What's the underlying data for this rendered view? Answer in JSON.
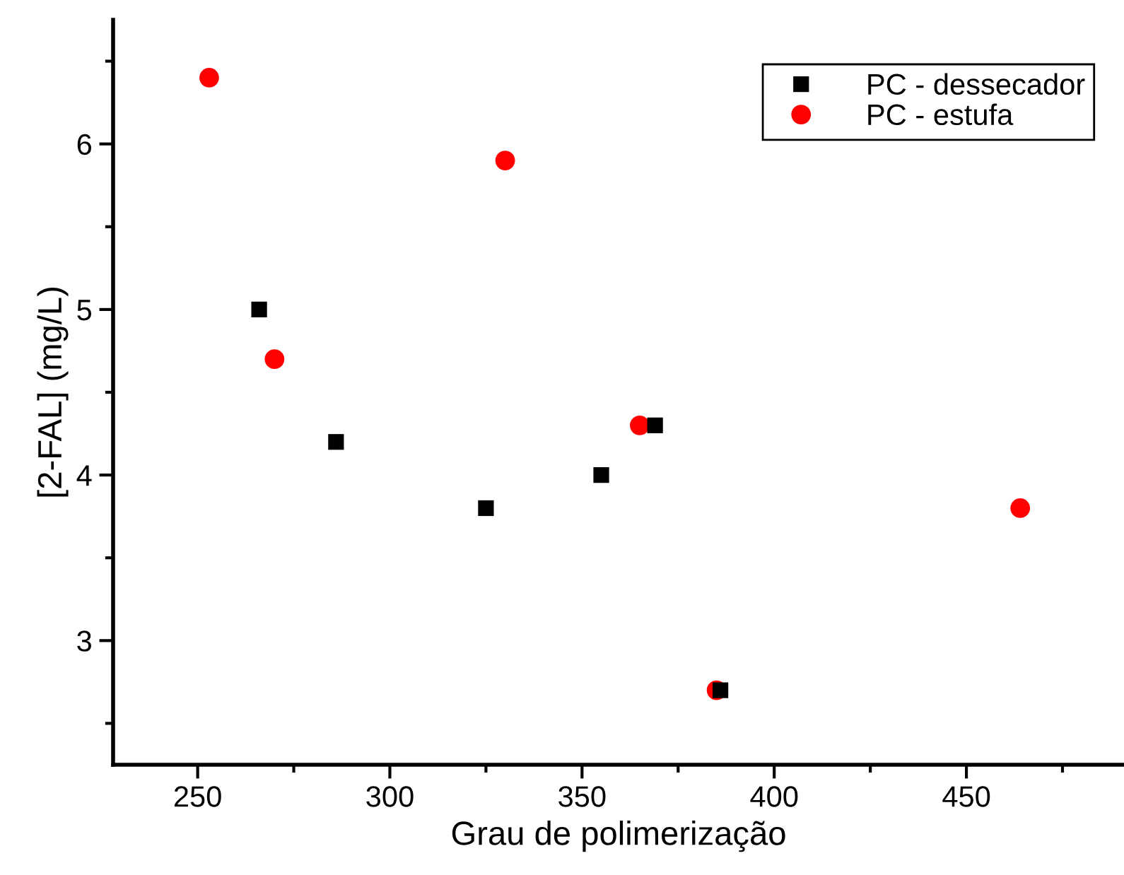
{
  "chart_data": {
    "type": "scatter",
    "xlabel": "Grau de polimerização",
    "ylabel": "[2-FAL] (mg/L)",
    "xlim": [
      228,
      491
    ],
    "ylim": [
      2.25,
      6.75
    ],
    "xticks": [
      250,
      {
        "value": 275,
        "label": null
      },
      300,
      {
        "value": 325,
        "label": null
      },
      350,
      {
        "value": 375,
        "label": null
      },
      400,
      {
        "value": 425,
        "label": null
      },
      450,
      {
        "value": 475,
        "label": null
      }
    ],
    "yticks": [
      {
        "value": 2.5,
        "label": null
      },
      3,
      {
        "value": 3.5,
        "label": null
      },
      4,
      {
        "value": 4.5,
        "label": null
      },
      5,
      {
        "value": 5.5,
        "label": null
      },
      6,
      {
        "value": 6.5,
        "label": null
      }
    ],
    "grid": false,
    "legend": "top right",
    "series": [
      {
        "name": "PC - dessecador",
        "color": "#000000",
        "marker": "square",
        "x": [
          266,
          286,
          325,
          355,
          369,
          386
        ],
        "values": [
          5.0,
          4.2,
          3.8,
          4.0,
          4.3,
          2.7
        ]
      },
      {
        "name": "PC - estufa",
        "color": "#ff0000",
        "marker": "circle",
        "x": [
          253,
          270,
          330,
          365,
          385,
          464
        ],
        "values": [
          6.4,
          4.7,
          5.9,
          4.3,
          2.7,
          3.8
        ]
      }
    ]
  }
}
